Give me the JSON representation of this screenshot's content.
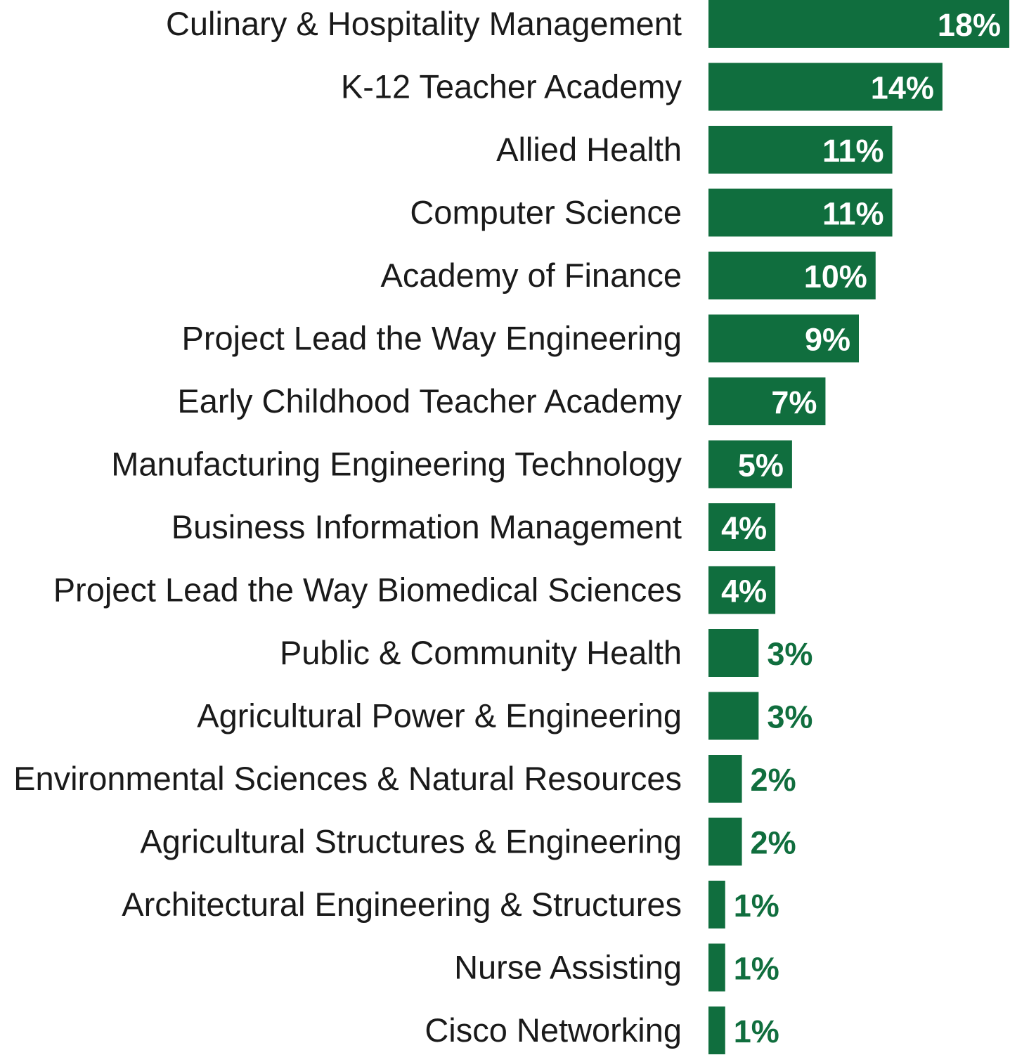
{
  "chart_data": {
    "type": "bar",
    "orientation": "horizontal",
    "title": "",
    "xlabel": "",
    "ylabel": "",
    "grid": false,
    "legend": "none",
    "unit": "%",
    "xlim": [
      0,
      18
    ],
    "bar_color": "#106e3e",
    "label_inside_color": "#ffffff",
    "label_outside_color": "#106e3e",
    "categories": [
      "Culinary & Hospitality Management",
      "K-12 Teacher Academy",
      "Allied Health",
      "Computer Science",
      "Academy of Finance",
      "Project Lead the Way Engineering",
      "Early Childhood Teacher Academy",
      "Manufacturing Engineering Technology",
      "Business Information Management",
      "Project Lead the Way Biomedical Sciences",
      "Public & Community Health",
      "Agricultural Power & Engineering",
      "Environmental Sciences & Natural Resources",
      "Agricultural Structures & Engineering",
      "Architectural Engineering & Structures",
      "Nurse Assisting",
      "Cisco Networking"
    ],
    "values": [
      18,
      14,
      11,
      11,
      10,
      9,
      7,
      5,
      4,
      4,
      3,
      3,
      2,
      2,
      1,
      1,
      1
    ],
    "value_labels": [
      "18%",
      "14%",
      "11%",
      "11%",
      "10%",
      "9%",
      "7%",
      "5%",
      "4%",
      "4%",
      "3%",
      "3%",
      "2%",
      "2%",
      "1%",
      "1%",
      "1%"
    ]
  }
}
